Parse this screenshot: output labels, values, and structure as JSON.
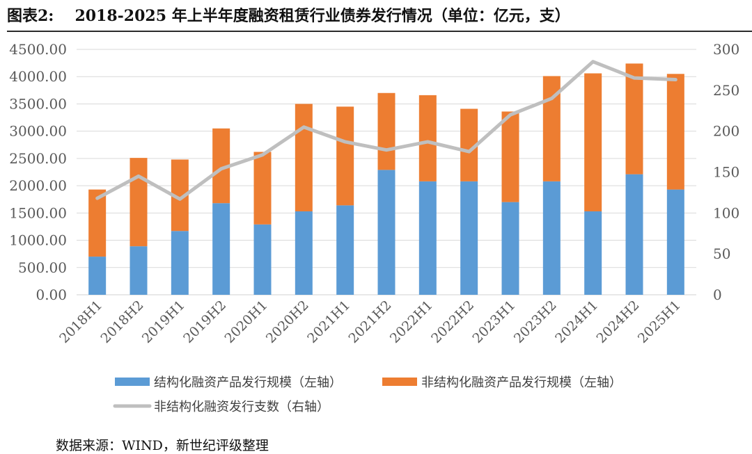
{
  "header": {
    "figure_no": "图表2:",
    "title": "2018-2025 年上半年度融资租赁行业债券发行情况（单位：亿元，支）"
  },
  "source": "数据来源：WIND，新世纪评级整理",
  "colors": {
    "structured": "#5B9BD5",
    "non_structured": "#ED7D31",
    "count_line": "#BFBFBF",
    "grid": "#D9D9D9",
    "axis_text": "#595959"
  },
  "chart_data": {
    "type": "bar",
    "stacked": true,
    "categories": [
      "2018H1",
      "2018H2",
      "2019H1",
      "2019H2",
      "2020H1",
      "2020H2",
      "2021H1",
      "2021H2",
      "2022H1",
      "2022H2",
      "2023H1",
      "2023H2",
      "2024H1",
      "2024H2",
      "2025H1"
    ],
    "series": [
      {
        "name": "结构化融资产品发行规模（左轴）",
        "axis": "left",
        "kind": "bar",
        "values": [
          700,
          890,
          1170,
          1680,
          1290,
          1530,
          1640,
          2290,
          2080,
          2080,
          1700,
          2080,
          1530,
          2210,
          1930
        ]
      },
      {
        "name": "非结构化融资产品发行规模（左轴）",
        "axis": "left",
        "kind": "bar",
        "values": [
          1230,
          1620,
          1310,
          1370,
          1330,
          1970,
          1810,
          1410,
          1580,
          1330,
          1660,
          1930,
          2530,
          2030,
          2120
        ]
      },
      {
        "name": "非结构化融资发行支数（右轴）",
        "axis": "right",
        "kind": "line",
        "values": [
          118,
          145,
          117,
          154,
          171,
          205,
          187,
          177,
          187,
          175,
          220,
          240,
          285,
          265,
          263
        ]
      }
    ],
    "left_axis": {
      "min": 0,
      "max": 4500,
      "step": 500,
      "tick_labels": [
        "0.00",
        "500.00",
        "1000.00",
        "1500.00",
        "2000.00",
        "2500.00",
        "3000.00",
        "3500.00",
        "4000.00",
        "4500.00"
      ]
    },
    "right_axis": {
      "min": 0,
      "max": 300,
      "step": 50,
      "tick_labels": [
        "0",
        "50",
        "100",
        "150",
        "200",
        "250",
        "300"
      ]
    },
    "grid": true,
    "legend_position": "bottom"
  }
}
